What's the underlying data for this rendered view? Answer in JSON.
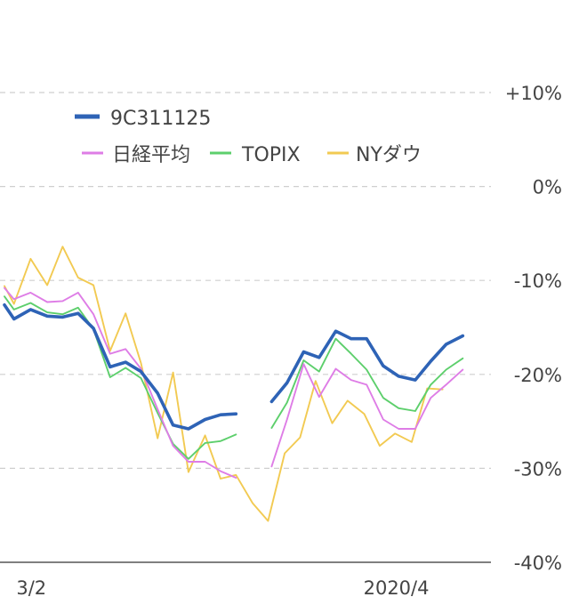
{
  "chart_data": {
    "type": "line",
    "x_range": [
      0,
      38
    ],
    "ylim": [
      -40,
      10
    ],
    "y_unit": "%",
    "y_ticks": [
      {
        "value": 10,
        "label": "+10%"
      },
      {
        "value": 0,
        "label": "0%"
      },
      {
        "value": -10,
        "label": "-10%"
      },
      {
        "value": -20,
        "label": "-20%"
      },
      {
        "value": -30,
        "label": "-30%"
      },
      {
        "value": -40,
        "label": "-40%"
      }
    ],
    "x_ticks": [
      {
        "x": 1,
        "label": "3/2"
      },
      {
        "x": 33,
        "label": "2020/4"
      }
    ],
    "grid": true,
    "legend_position": "top-left",
    "series": [
      {
        "name": "9C311125",
        "color": "#2e63b6",
        "width": "bold",
        "points": [
          [
            0,
            -12.6
          ],
          [
            0.8,
            -14.1
          ],
          [
            2.2,
            -13.1
          ],
          [
            3.6,
            -13.8
          ],
          [
            4.9,
            -13.9
          ],
          [
            6.2,
            -13.5
          ],
          [
            7.5,
            -15.1
          ],
          [
            8.9,
            -19.2
          ],
          [
            10.2,
            -18.7
          ],
          [
            11.5,
            -19.7
          ],
          [
            12.9,
            -22.0
          ],
          [
            14.2,
            -25.4
          ],
          [
            15.5,
            -25.8
          ],
          [
            16.9,
            -24.8
          ],
          [
            18.2,
            -24.3
          ],
          [
            19.5,
            -24.2
          ],
          null,
          [
            22.5,
            -22.9
          ],
          [
            23.8,
            -20.9
          ],
          [
            25.2,
            -17.6
          ],
          [
            26.5,
            -18.2
          ],
          [
            27.9,
            -15.4
          ],
          [
            29.2,
            -16.2
          ],
          [
            30.5,
            -16.2
          ],
          [
            31.9,
            -19.1
          ],
          [
            33.2,
            -20.2
          ],
          [
            34.6,
            -20.6
          ],
          [
            35.9,
            -18.6
          ],
          [
            37.2,
            -16.8
          ],
          [
            38.6,
            -15.9
          ]
        ]
      },
      {
        "name": "日経平均",
        "color": "#de7de6",
        "width": "thin",
        "points": [
          [
            0,
            -10.8
          ],
          [
            0.8,
            -12.0
          ],
          [
            2.2,
            -11.3
          ],
          [
            3.6,
            -12.3
          ],
          [
            4.9,
            -12.2
          ],
          [
            6.2,
            -11.3
          ],
          [
            7.5,
            -13.6
          ],
          [
            8.9,
            -17.8
          ],
          [
            10.2,
            -17.3
          ],
          [
            11.5,
            -19.4
          ],
          [
            12.9,
            -23.7
          ],
          [
            14.2,
            -27.6
          ],
          [
            15.5,
            -29.3
          ],
          [
            16.9,
            -29.3
          ],
          [
            18.2,
            -30.3
          ],
          [
            19.5,
            -31.0
          ],
          null,
          [
            22.5,
            -29.8
          ],
          [
            23.8,
            -24.8
          ],
          [
            25.2,
            -18.9
          ],
          [
            26.5,
            -22.4
          ],
          [
            27.9,
            -19.4
          ],
          [
            29.2,
            -20.6
          ],
          [
            30.5,
            -21.1
          ],
          [
            31.9,
            -24.8
          ],
          [
            33.2,
            -25.8
          ],
          [
            34.6,
            -25.8
          ],
          [
            35.9,
            -22.5
          ],
          [
            37.2,
            -21.1
          ],
          [
            38.6,
            -19.5
          ]
        ]
      },
      {
        "name": "TOPIX",
        "color": "#5dcf6c",
        "width": "thin",
        "points": [
          [
            0,
            -11.7
          ],
          [
            0.8,
            -13.1
          ],
          [
            2.2,
            -12.4
          ],
          [
            3.6,
            -13.4
          ],
          [
            4.9,
            -13.6
          ],
          [
            6.2,
            -12.9
          ],
          [
            7.5,
            -15.2
          ],
          [
            8.9,
            -20.3
          ],
          [
            10.2,
            -19.3
          ],
          [
            11.5,
            -20.4
          ],
          [
            12.9,
            -24.1
          ],
          [
            14.2,
            -27.4
          ],
          [
            15.5,
            -29.0
          ],
          [
            16.9,
            -27.3
          ],
          [
            18.2,
            -27.1
          ],
          [
            19.5,
            -26.4
          ],
          null,
          [
            22.5,
            -25.7
          ],
          [
            23.8,
            -23.0
          ],
          [
            25.2,
            -18.5
          ],
          [
            26.5,
            -19.7
          ],
          [
            27.9,
            -16.2
          ],
          [
            29.2,
            -17.8
          ],
          [
            30.5,
            -19.5
          ],
          [
            31.9,
            -22.5
          ],
          [
            33.2,
            -23.6
          ],
          [
            34.6,
            -23.9
          ],
          [
            35.9,
            -21.1
          ],
          [
            37.2,
            -19.5
          ],
          [
            38.6,
            -18.3
          ]
        ]
      },
      {
        "name": "NYダウ",
        "color": "#f2ca52",
        "width": "thin",
        "points": [
          [
            0,
            -10.6
          ],
          [
            0.8,
            -12.5
          ],
          [
            2.2,
            -7.7
          ],
          [
            3.6,
            -10.5
          ],
          [
            4.9,
            -6.4
          ],
          [
            6.2,
            -9.7
          ],
          [
            7.5,
            -10.5
          ],
          [
            8.9,
            -17.5
          ],
          [
            10.2,
            -13.5
          ],
          [
            11.5,
            -18.8
          ],
          [
            12.9,
            -26.8
          ],
          [
            14.2,
            -19.8
          ],
          [
            15.5,
            -30.4
          ],
          [
            16.9,
            -26.5
          ],
          [
            18.2,
            -31.1
          ],
          [
            19.5,
            -30.7
          ],
          [
            20.9,
            -33.7
          ],
          [
            22.2,
            -35.6
          ],
          [
            23.6,
            -28.4
          ],
          [
            24.9,
            -26.7
          ],
          [
            26.2,
            -20.7
          ],
          [
            27.6,
            -25.2
          ],
          [
            28.9,
            -22.8
          ],
          [
            30.3,
            -24.2
          ],
          [
            31.6,
            -27.6
          ],
          [
            32.9,
            -26.3
          ],
          [
            34.3,
            -27.2
          ],
          [
            35.6,
            -21.5
          ],
          [
            36.9,
            -21.6
          ]
        ]
      }
    ]
  }
}
